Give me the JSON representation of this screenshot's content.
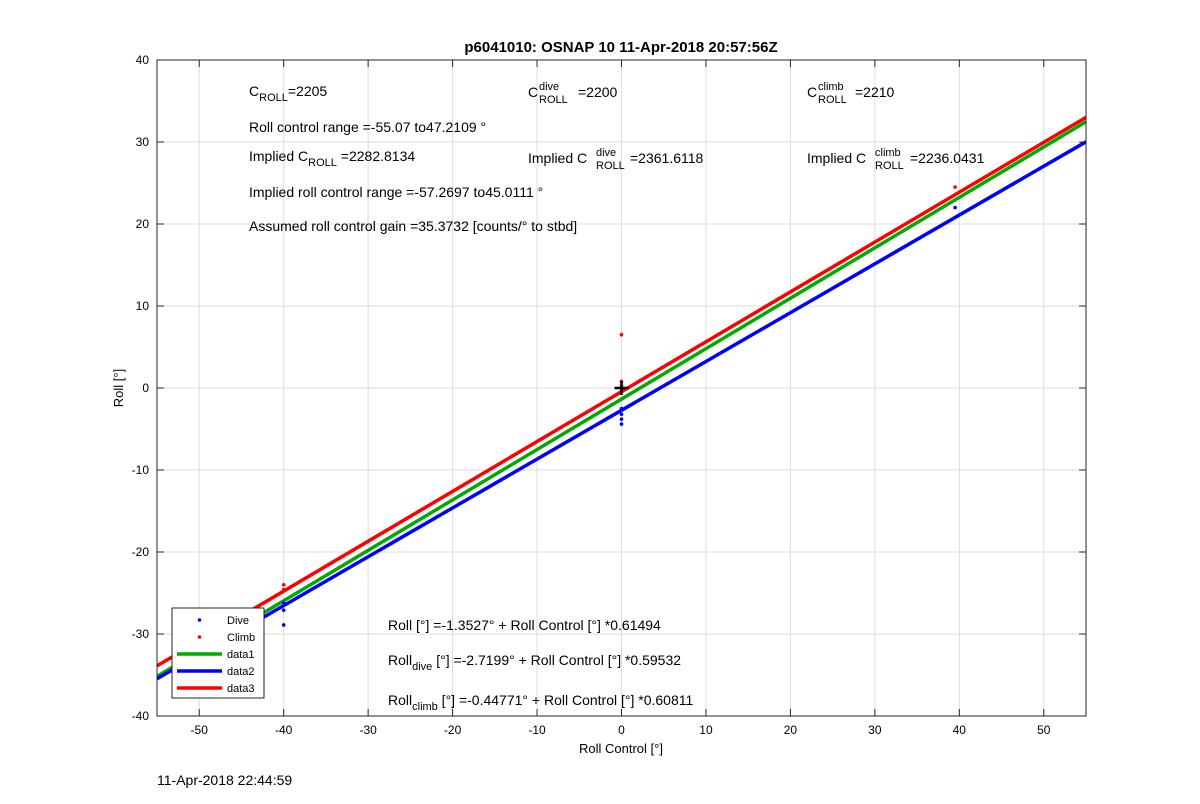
{
  "footer": {
    "timestamp": "11-Apr-2018 22:44:59"
  },
  "chart_data": {
    "type": "scatter",
    "title": "p6041010: OSNAP 10 11-Apr-2018 20:57:56Z",
    "xlabel": "Roll Control [°]",
    "ylabel": "Roll [°]",
    "xlim": [
      -55,
      55
    ],
    "ylim": [
      -40,
      40
    ],
    "xticks": [
      -50,
      -40,
      -30,
      -20,
      -10,
      0,
      10,
      20,
      30,
      40,
      50
    ],
    "yticks": [
      -40,
      -30,
      -20,
      -10,
      0,
      10,
      20,
      30,
      40
    ],
    "grid": true,
    "legend_position": "bottom-left",
    "series": [
      {
        "name": "Dive",
        "kind": "points",
        "color": "#0000ff",
        "points": [
          [
            -50,
            -28.5
          ],
          [
            -40,
            -26.2
          ],
          [
            -40,
            -27.1
          ],
          [
            -40,
            -28.9
          ],
          [
            0,
            -2.5
          ],
          [
            0,
            -3.2
          ],
          [
            0,
            -3.8
          ],
          [
            0,
            -4.4
          ],
          [
            39.5,
            22.0
          ]
        ]
      },
      {
        "name": "Climb",
        "kind": "points",
        "color": "#ff0000",
        "points": [
          [
            -40,
            -24.0
          ],
          [
            -40,
            -24.6
          ],
          [
            0,
            6.5
          ],
          [
            0,
            0.8
          ],
          [
            0,
            0.3
          ],
          [
            0,
            -0.4
          ],
          [
            39.5,
            24.5
          ]
        ]
      },
      {
        "name": "data1",
        "kind": "line",
        "color": "#00aa00",
        "intercept": -1.3527,
        "slope": 0.61494
      },
      {
        "name": "data2",
        "kind": "line",
        "color": "#0000ff",
        "intercept": -2.7199,
        "slope": 0.59532
      },
      {
        "name": "data3",
        "kind": "line",
        "color": "#ff0000",
        "intercept": -0.44771,
        "slope": 0.60811
      }
    ],
    "center_marker": {
      "x": 0,
      "y": 0,
      "color": "#000000"
    },
    "annotations": {
      "c_roll": {
        "base": "C",
        "sub": "ROLL",
        "rest": "=2205"
      },
      "c_roll_dive": {
        "base": "C",
        "sup": "dive",
        "sub": "ROLL",
        "rest": " =2200"
      },
      "c_roll_climb": {
        "base": "C",
        "sup": "climb",
        "sub": "ROLL",
        "rest": " =2210"
      },
      "roll_control_range": "Roll control range =-55.07 to47.2109 °",
      "implied_c_roll": {
        "pre": "Implied C",
        "sub": "ROLL",
        "rest": " =2282.8134"
      },
      "implied_c_roll_dive": {
        "pre": "Implied C",
        "sup": "dive",
        "sub": "ROLL",
        "rest": " =2361.6118"
      },
      "implied_c_roll_climb": {
        "pre": "Implied C",
        "sup": "climb",
        "sub": "ROLL",
        "rest": " =2236.0431"
      },
      "implied_roll_control_range": "Implied roll control range =-57.2697 to45.0111 °",
      "assumed_gain": "Assumed roll control gain =35.3732 [counts/° to stbd]",
      "fit_all": "Roll [°] =-1.3527° + Roll Control [°] *0.61494",
      "fit_dive": {
        "pre": "Roll",
        "sub": "dive",
        "rest": " [°] =-2.7199° + Roll Control [°] *0.59532"
      },
      "fit_climb": {
        "pre": "Roll",
        "sub": "climb",
        "rest": " [°] =-0.44771° + Roll Control [°] *0.60811"
      }
    }
  }
}
